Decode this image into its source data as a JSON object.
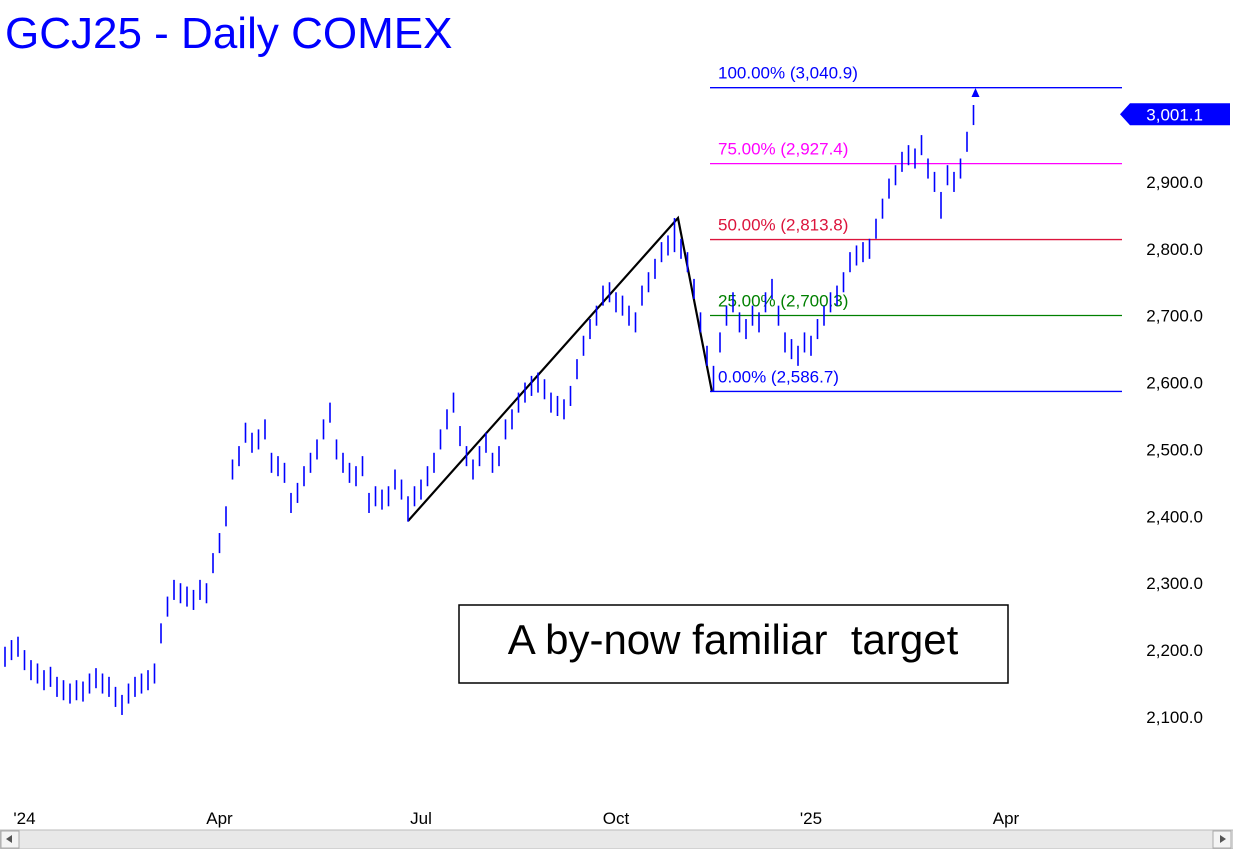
{
  "chart_data": {
    "type": "ohlc",
    "title": "GCJ25 - Daily  COMEX",
    "annotation": "A by-now familiar  target",
    "color": "#0000ff",
    "ylim": [
      1931,
      3172
    ],
    "yticks": [
      {
        "value": 2100,
        "label": "2,100.0"
      },
      {
        "value": 2200,
        "label": "2,200.0"
      },
      {
        "value": 2300,
        "label": "2,300.0"
      },
      {
        "value": 2400,
        "label": "2,400.0"
      },
      {
        "value": 2500,
        "label": "2,500.0"
      },
      {
        "value": 2600,
        "label": "2,600.0"
      },
      {
        "value": 2700,
        "label": "2,700.0"
      },
      {
        "value": 2800,
        "label": "2,800.0"
      },
      {
        "value": 2900,
        "label": "2,900.0"
      }
    ],
    "last_price": {
      "value": 3001.1,
      "label": "3,001.1"
    },
    "fib_levels": [
      {
        "label": "100.00% (3,040.9)",
        "value": 3040.9,
        "color": "#0000ff"
      },
      {
        "label": "75.00% (2,927.4)",
        "value": 2927.4,
        "color": "#ff00ff"
      },
      {
        "label": "50.00% (2,813.8)",
        "value": 2813.8,
        "color": "#dc143c"
      },
      {
        "label": "25.00% (2,700.3)",
        "value": 2700.3,
        "color": "#008000"
      },
      {
        "label": "0.00% (2,586.7)",
        "value": 2586.7,
        "color": "#0000ff"
      }
    ],
    "categories": [
      null,
      null,
      null,
      "'24",
      null,
      null,
      null,
      null,
      null,
      null,
      null,
      null,
      null,
      null,
      null,
      null,
      null,
      null,
      null,
      null,
      null,
      null,
      null,
      null,
      null,
      null,
      null,
      null,
      null,
      null,
      null,
      null,
      null,
      "Apr",
      null,
      null,
      null,
      null,
      null,
      null,
      null,
      null,
      null,
      null,
      null,
      null,
      null,
      null,
      null,
      null,
      null,
      null,
      null,
      null,
      null,
      null,
      null,
      null,
      null,
      null,
      null,
      null,
      null,
      null,
      "Jul",
      null,
      null,
      null,
      null,
      null,
      null,
      null,
      null,
      null,
      null,
      null,
      null,
      null,
      null,
      null,
      null,
      null,
      null,
      null,
      null,
      null,
      null,
      null,
      null,
      null,
      null,
      null,
      null,
      null,
      "Oct",
      null,
      null,
      null,
      null,
      null,
      null,
      null,
      null,
      null,
      null,
      null,
      null,
      null,
      null,
      null,
      null,
      null,
      null,
      null,
      null,
      null,
      null,
      null,
      null,
      null,
      null,
      null,
      null,
      null,
      "'25",
      null,
      null,
      null,
      null,
      null,
      null,
      null,
      null,
      null,
      null,
      null,
      null,
      null,
      null,
      null,
      null,
      null,
      null,
      null,
      null,
      null,
      null,
      null,
      null,
      null,
      null,
      null,
      null,
      null,
      "Apr"
    ],
    "high": [
      2205,
      2215,
      2220,
      2200,
      2185,
      2180,
      2170,
      2175,
      2160,
      2155,
      2150,
      2155,
      2153,
      2165,
      2173,
      2165,
      2160,
      2145,
      2133,
      2150,
      2160,
      2165,
      2170,
      2180,
      2240,
      2280,
      2305,
      2300,
      2295,
      2290,
      2305,
      2300,
      2345,
      2375,
      2415,
      2485,
      2505,
      2540,
      2525,
      2530,
      2545,
      2495,
      2490,
      2480,
      2435,
      2450,
      2475,
      2495,
      2515,
      2545,
      2570,
      2515,
      2495,
      2480,
      2475,
      2490,
      2435,
      2445,
      2440,
      2445,
      2470,
      2455,
      2430,
      2445,
      2455,
      2475,
      2495,
      2530,
      2560,
      2585,
      2535,
      2505,
      2485,
      2505,
      2525,
      2495,
      2505,
      2545,
      2560,
      2585,
      2600,
      2610,
      2615,
      2605,
      2585,
      2580,
      2575,
      2595,
      2635,
      2670,
      2695,
      2715,
      2745,
      2750,
      2735,
      2730,
      2715,
      2705,
      2745,
      2765,
      2785,
      2810,
      2820,
      2846,
      2815,
      2795,
      2755,
      2705,
      2655,
      2625,
      2675,
      2715,
      2735,
      2705,
      2695,
      2715,
      2705,
      2735,
      2755,
      2715,
      2675,
      2665,
      2655,
      2675,
      2670,
      2695,
      2715,
      2735,
      2745,
      2765,
      2795,
      2805,
      2810,
      2815,
      2845,
      2875,
      2905,
      2925,
      2945,
      2955,
      2950,
      2970,
      2935,
      2915,
      2885,
      2925,
      2915,
      2935,
      2975,
      3015,
      null,
      null,
      null,
      null,
      null
    ],
    "low": [
      2175,
      2185,
      2190,
      2170,
      2155,
      2150,
      2140,
      2145,
      2130,
      2125,
      2120,
      2125,
      2123,
      2135,
      2143,
      2135,
      2130,
      2115,
      2103,
      2120,
      2130,
      2135,
      2140,
      2150,
      2210,
      2250,
      2275,
      2270,
      2265,
      2260,
      2275,
      2270,
      2315,
      2345,
      2385,
      2455,
      2475,
      2510,
      2495,
      2500,
      2515,
      2465,
      2460,
      2450,
      2405,
      2420,
      2445,
      2465,
      2485,
      2515,
      2540,
      2485,
      2465,
      2450,
      2445,
      2460,
      2405,
      2415,
      2410,
      2415,
      2440,
      2425,
      2392,
      2415,
      2425,
      2445,
      2465,
      2500,
      2530,
      2555,
      2505,
      2475,
      2455,
      2475,
      2495,
      2465,
      2475,
      2515,
      2530,
      2555,
      2570,
      2580,
      2585,
      2575,
      2555,
      2550,
      2545,
      2565,
      2605,
      2640,
      2665,
      2685,
      2715,
      2720,
      2705,
      2700,
      2685,
      2675,
      2715,
      2735,
      2755,
      2780,
      2790,
      2795,
      2785,
      2765,
      2725,
      2675,
      2625,
      2587,
      2645,
      2685,
      2705,
      2675,
      2665,
      2685,
      2675,
      2705,
      2725,
      2685,
      2645,
      2635,
      2625,
      2645,
      2640,
      2665,
      2685,
      2705,
      2715,
      2735,
      2765,
      2775,
      2780,
      2785,
      2815,
      2845,
      2875,
      2895,
      2915,
      2925,
      2920,
      2940,
      2905,
      2885,
      2845,
      2895,
      2885,
      2905,
      2945,
      2985,
      null,
      null,
      null,
      null,
      null
    ]
  }
}
